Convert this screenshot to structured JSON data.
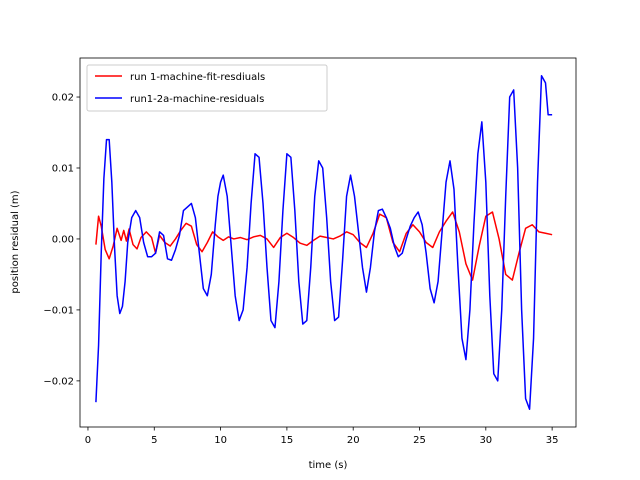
{
  "chart_data": {
    "type": "line",
    "xlabel": "time (s)",
    "ylabel": "position residual (m)",
    "xlim": [
      -0.6,
      36.8
    ],
    "ylim": [
      -0.0265,
      0.0255
    ],
    "xticks": [
      0,
      5,
      10,
      15,
      20,
      25,
      30,
      35
    ],
    "xtick_labels": [
      "0",
      "5",
      "10",
      "15",
      "20",
      "25",
      "30",
      "35"
    ],
    "yticks": [
      -0.02,
      -0.01,
      0.0,
      0.01,
      0.02
    ],
    "ytick_labels": [
      "−0.02",
      "−0.01",
      "0.00",
      "0.01",
      "0.02"
    ],
    "grid": false,
    "legend_position": "upper-left",
    "series": [
      {
        "name": "run 1-machine-fit-resdiuals",
        "color": "#ff0000",
        "x": [
          0.6,
          0.8,
          1.0,
          1.3,
          1.6,
          1.9,
          2.2,
          2.5,
          2.7,
          2.9,
          3.1,
          3.4,
          3.7,
          4.0,
          4.4,
          4.8,
          5.1,
          5.4,
          5.8,
          6.2,
          6.6,
          7.0,
          7.4,
          7.8,
          8.2,
          8.6,
          9.0,
          9.4,
          9.8,
          10.2,
          10.6,
          11.0,
          11.5,
          12.0,
          12.5,
          13.0,
          13.5,
          14.0,
          14.5,
          15.0,
          15.5,
          16.0,
          16.5,
          17.0,
          17.5,
          18.0,
          18.5,
          19.0,
          19.5,
          20.0,
          20.5,
          21.0,
          21.5,
          22.0,
          22.5,
          23.0,
          23.5,
          24.0,
          24.5,
          25.0,
          25.5,
          26.0,
          26.5,
          27.0,
          27.5,
          28.0,
          28.5,
          29.0,
          29.5,
          30.0,
          30.5,
          31.0,
          31.5,
          32.0,
          32.5,
          33.0,
          33.5,
          34.0,
          34.5,
          35.0
        ],
        "y": [
          -0.0008,
          0.0032,
          0.0018,
          -0.0015,
          -0.0028,
          -0.001,
          0.0015,
          -0.0002,
          0.0012,
          -0.0003,
          0.0014,
          -0.0008,
          -0.0014,
          0.0002,
          0.001,
          0.0002,
          -0.002,
          0.0005,
          -0.0005,
          -0.001,
          0.0,
          0.0012,
          0.0022,
          0.0018,
          -0.0008,
          -0.0018,
          -0.0005,
          0.001,
          0.0003,
          -0.0002,
          0.0003,
          0.0,
          0.0002,
          -0.0001,
          0.0003,
          0.0005,
          0.0,
          -0.0012,
          0.0002,
          0.0008,
          0.0002,
          -0.0006,
          -0.0009,
          -0.0002,
          0.0004,
          0.0002,
          0.0,
          0.0004,
          0.001,
          0.0006,
          -0.0005,
          -0.0012,
          0.0008,
          0.0035,
          0.003,
          -0.0005,
          -0.0018,
          0.0008,
          0.002,
          0.001,
          -0.0005,
          -0.0012,
          0.001,
          0.0025,
          0.0038,
          0.001,
          -0.0035,
          -0.0058,
          -0.001,
          0.0032,
          0.0038,
          0.0,
          -0.005,
          -0.0058,
          -0.002,
          0.0015,
          0.002,
          0.001,
          0.0008,
          0.0006
        ]
      },
      {
        "name": "run1-2a-machine-residuals",
        "color": "#0000ff",
        "x": [
          0.6,
          0.8,
          1.0,
          1.2,
          1.4,
          1.6,
          1.8,
          2.0,
          2.2,
          2.4,
          2.6,
          2.8,
          3.0,
          3.3,
          3.6,
          3.9,
          4.2,
          4.5,
          4.8,
          5.1,
          5.4,
          5.7,
          6.0,
          6.3,
          6.6,
          6.9,
          7.2,
          7.5,
          7.8,
          8.1,
          8.4,
          8.7,
          9.0,
          9.3,
          9.6,
          9.8,
          10.0,
          10.2,
          10.5,
          10.8,
          11.1,
          11.4,
          11.7,
          12.0,
          12.3,
          12.6,
          12.9,
          13.2,
          13.5,
          13.8,
          14.1,
          14.4,
          14.7,
          15.0,
          15.3,
          15.6,
          15.9,
          16.2,
          16.5,
          16.8,
          17.1,
          17.4,
          17.7,
          18.0,
          18.3,
          18.6,
          18.9,
          19.2,
          19.5,
          19.8,
          20.1,
          20.4,
          20.7,
          21.0,
          21.3,
          21.6,
          21.9,
          22.2,
          22.5,
          22.8,
          23.1,
          23.4,
          23.7,
          24.0,
          24.3,
          24.6,
          24.9,
          25.2,
          25.5,
          25.8,
          26.1,
          26.4,
          26.7,
          27.0,
          27.3,
          27.6,
          27.9,
          28.2,
          28.5,
          28.8,
          29.1,
          29.4,
          29.7,
          30.0,
          30.3,
          30.6,
          30.9,
          31.2,
          31.5,
          31.8,
          32.1,
          32.4,
          32.7,
          33.0,
          33.3,
          33.6,
          33.9,
          34.2,
          34.5,
          34.7,
          34.9,
          35.0
        ],
        "y": [
          -0.023,
          -0.015,
          -0.002,
          0.0085,
          0.014,
          0.014,
          0.008,
          -0.001,
          -0.008,
          -0.0105,
          -0.0095,
          -0.006,
          -0.0005,
          0.003,
          0.004,
          0.003,
          -0.0005,
          -0.0025,
          -0.0025,
          -0.002,
          0.001,
          0.0005,
          -0.0028,
          -0.003,
          -0.0015,
          0.0005,
          0.004,
          0.0045,
          0.005,
          0.003,
          -0.002,
          -0.007,
          -0.008,
          -0.005,
          0.002,
          0.006,
          0.008,
          0.009,
          0.006,
          -0.001,
          -0.008,
          -0.0115,
          -0.01,
          -0.004,
          0.005,
          0.012,
          0.0115,
          0.005,
          -0.004,
          -0.0115,
          -0.0125,
          -0.006,
          0.004,
          0.012,
          0.0115,
          0.004,
          -0.006,
          -0.012,
          -0.0115,
          -0.004,
          0.006,
          0.011,
          0.01,
          0.003,
          -0.006,
          -0.0115,
          -0.011,
          -0.003,
          0.006,
          0.009,
          0.006,
          0.001,
          -0.004,
          -0.0075,
          -0.004,
          0.001,
          0.004,
          0.0042,
          0.003,
          0.0015,
          -0.001,
          -0.0025,
          -0.002,
          0.0,
          0.0018,
          0.003,
          0.0038,
          0.002,
          -0.002,
          -0.007,
          -0.009,
          -0.006,
          0.001,
          0.008,
          0.011,
          0.007,
          -0.004,
          -0.014,
          -0.017,
          -0.01,
          0.002,
          0.012,
          0.0165,
          0.008,
          -0.008,
          -0.019,
          -0.02,
          -0.01,
          0.006,
          0.02,
          0.021,
          0.01,
          -0.01,
          -0.0225,
          -0.024,
          -0.014,
          0.008,
          0.023,
          0.022,
          0.0175,
          0.0175,
          0.0175
        ]
      }
    ]
  }
}
